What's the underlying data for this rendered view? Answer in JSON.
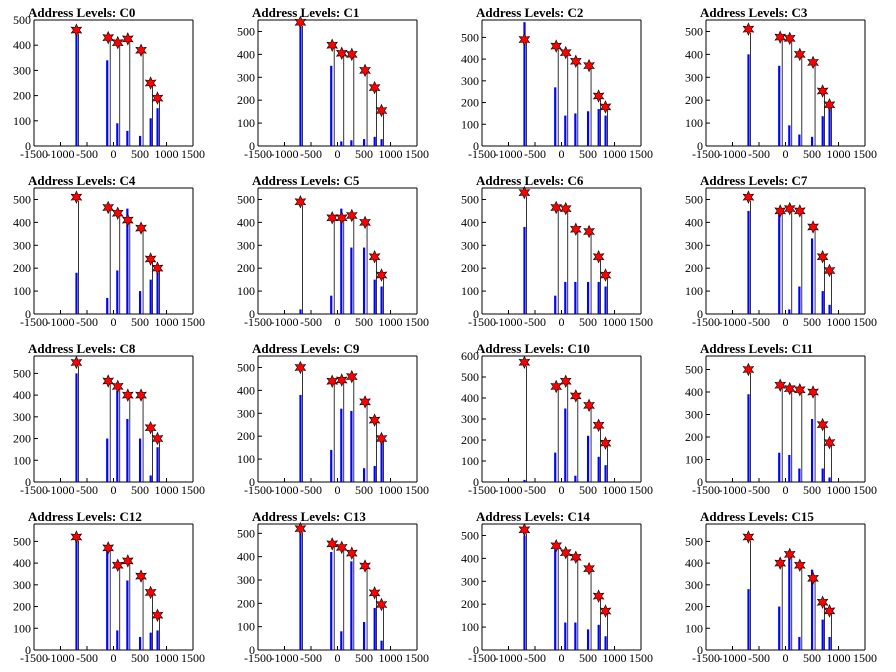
{
  "chart_data": [
    {
      "type": "bar",
      "title": "Address Levels: C0",
      "xlim": [
        -1500,
        1500
      ],
      "ylim": [
        0,
        500
      ],
      "xticks": [
        "-1500",
        "-1000",
        "-500",
        "0",
        "500",
        "1000",
        "1500"
      ],
      "yticks": [
        "0",
        "100",
        "200",
        "300",
        "400",
        "500"
      ],
      "stars": {
        "x": [
          -700,
          -100,
          80,
          270,
          520,
          700,
          830
        ],
        "y": [
          460,
          430,
          410,
          425,
          380,
          250,
          190
        ]
      },
      "bars": [
        {
          "x": -700,
          "y": 450
        },
        {
          "x": -120,
          "y": 340
        },
        {
          "x": 70,
          "y": 90
        },
        {
          "x": 260,
          "y": 60
        },
        {
          "x": 500,
          "y": 40
        },
        {
          "x": 700,
          "y": 110
        },
        {
          "x": 830,
          "y": 150
        }
      ]
    },
    {
      "type": "bar",
      "title": "Address Levels: C1",
      "xlim": [
        -1500,
        1500
      ],
      "ylim": [
        0,
        550
      ],
      "xticks": [
        "-1500",
        "-1000",
        "-500",
        "0",
        "500",
        "1000",
        "1500"
      ],
      "yticks": [
        "0",
        "100",
        "200",
        "300",
        "400",
        "500"
      ],
      "stars": {
        "x": [
          -700,
          -100,
          80,
          270,
          520,
          700,
          830
        ],
        "y": [
          540,
          440,
          405,
          400,
          330,
          255,
          155
        ]
      },
      "bars": [
        {
          "x": -700,
          "y": 520
        },
        {
          "x": -120,
          "y": 350
        },
        {
          "x": 70,
          "y": 20
        },
        {
          "x": 260,
          "y": 25
        },
        {
          "x": 500,
          "y": 30
        },
        {
          "x": 700,
          "y": 40
        },
        {
          "x": 830,
          "y": 30
        }
      ]
    },
    {
      "type": "bar",
      "title": "Address Levels: C2",
      "xlim": [
        -1500,
        1500
      ],
      "ylim": [
        0,
        580
      ],
      "xticks": [
        "-1500",
        "-1000",
        "-500",
        "0",
        "500",
        "1000",
        "1500"
      ],
      "yticks": [
        "0",
        "100",
        "200",
        "300",
        "400",
        "500"
      ],
      "stars": {
        "x": [
          -700,
          -100,
          80,
          270,
          520,
          700,
          830
        ],
        "y": [
          490,
          460,
          430,
          390,
          370,
          230,
          180
        ]
      },
      "bars": [
        {
          "x": -700,
          "y": 570
        },
        {
          "x": -120,
          "y": 270
        },
        {
          "x": 70,
          "y": 140
        },
        {
          "x": 260,
          "y": 150
        },
        {
          "x": 500,
          "y": 160
        },
        {
          "x": 700,
          "y": 170
        },
        {
          "x": 830,
          "y": 140
        }
      ]
    },
    {
      "type": "bar",
      "title": "Address Levels: C3",
      "xlim": [
        -1500,
        1500
      ],
      "ylim": [
        0,
        550
      ],
      "xticks": [
        "-1500",
        "-1000",
        "-500",
        "0",
        "500",
        "1000",
        "1500"
      ],
      "yticks": [
        "0",
        "100",
        "200",
        "300",
        "400",
        "500"
      ],
      "stars": {
        "x": [
          -700,
          -100,
          80,
          270,
          520,
          700,
          830
        ],
        "y": [
          510,
          475,
          470,
          400,
          365,
          240,
          180
        ]
      },
      "bars": [
        {
          "x": -700,
          "y": 400
        },
        {
          "x": -120,
          "y": 350
        },
        {
          "x": 70,
          "y": 90
        },
        {
          "x": 260,
          "y": 50
        },
        {
          "x": 500,
          "y": 40
        },
        {
          "x": 700,
          "y": 130
        },
        {
          "x": 830,
          "y": 160
        }
      ]
    },
    {
      "type": "bar",
      "title": "Address Levels: C4",
      "xlim": [
        -1500,
        1500
      ],
      "ylim": [
        0,
        550
      ],
      "xticks": [
        "-1500",
        "-1000",
        "-500",
        "0",
        "500",
        "1000",
        "1500"
      ],
      "yticks": [
        "0",
        "100",
        "200",
        "300",
        "400",
        "500"
      ],
      "stars": {
        "x": [
          -700,
          -100,
          80,
          270,
          520,
          700,
          830
        ],
        "y": [
          510,
          465,
          440,
          410,
          375,
          240,
          200
        ]
      },
      "bars": [
        {
          "x": -700,
          "y": 180
        },
        {
          "x": -120,
          "y": 70
        },
        {
          "x": 70,
          "y": 190
        },
        {
          "x": 260,
          "y": 460
        },
        {
          "x": 500,
          "y": 100
        },
        {
          "x": 700,
          "y": 150
        },
        {
          "x": 830,
          "y": 180
        }
      ]
    },
    {
      "type": "bar",
      "title": "Address Levels: C5",
      "xlim": [
        -1500,
        1500
      ],
      "ylim": [
        0,
        550
      ],
      "xticks": [
        "-1500",
        "-1000",
        "-500",
        "0",
        "500",
        "1000",
        "1500"
      ],
      "yticks": [
        "0",
        "100",
        "200",
        "300",
        "400",
        "500"
      ],
      "stars": {
        "x": [
          -700,
          -100,
          80,
          270,
          520,
          700,
          830
        ],
        "y": [
          490,
          420,
          420,
          430,
          400,
          250,
          170
        ]
      },
      "bars": [
        {
          "x": -700,
          "y": 20
        },
        {
          "x": -120,
          "y": 80
        },
        {
          "x": 70,
          "y": 460
        },
        {
          "x": 260,
          "y": 290
        },
        {
          "x": 500,
          "y": 290
        },
        {
          "x": 700,
          "y": 150
        },
        {
          "x": 830,
          "y": 120
        }
      ]
    },
    {
      "type": "bar",
      "title": "Address Levels: C6",
      "xlim": [
        -1500,
        1500
      ],
      "ylim": [
        0,
        550
      ],
      "xticks": [
        "-1500",
        "-1000",
        "-500",
        "0",
        "500",
        "1000",
        "1500"
      ],
      "yticks": [
        "0",
        "100",
        "200",
        "300",
        "400",
        "500"
      ],
      "stars": {
        "x": [
          -700,
          -100,
          80,
          270,
          520,
          700,
          830
        ],
        "y": [
          530,
          465,
          460,
          370,
          360,
          250,
          170
        ]
      },
      "bars": [
        {
          "x": -700,
          "y": 380
        },
        {
          "x": -120,
          "y": 80
        },
        {
          "x": 70,
          "y": 140
        },
        {
          "x": 260,
          "y": 140
        },
        {
          "x": 500,
          "y": 140
        },
        {
          "x": 700,
          "y": 140
        },
        {
          "x": 830,
          "y": 120
        }
      ]
    },
    {
      "type": "bar",
      "title": "Address Levels: C7",
      "xlim": [
        -1500,
        1500
      ],
      "ylim": [
        0,
        550
      ],
      "xticks": [
        "-1500",
        "-1000",
        "-500",
        "0",
        "500",
        "1000",
        "1500"
      ],
      "yticks": [
        "0",
        "100",
        "200",
        "300",
        "400",
        "500"
      ],
      "stars": {
        "x": [
          -700,
          -100,
          80,
          270,
          520,
          700,
          830
        ],
        "y": [
          510,
          450,
          460,
          450,
          380,
          250,
          190
        ]
      },
      "bars": [
        {
          "x": -700,
          "y": 450
        },
        {
          "x": -120,
          "y": 450
        },
        {
          "x": 70,
          "y": 20
        },
        {
          "x": 260,
          "y": 120
        },
        {
          "x": 500,
          "y": 330
        },
        {
          "x": 700,
          "y": 100
        },
        {
          "x": 830,
          "y": 40
        }
      ]
    },
    {
      "type": "bar",
      "title": "Address Levels: C8",
      "xlim": [
        -1500,
        1500
      ],
      "ylim": [
        0,
        580
      ],
      "xticks": [
        "-1500",
        "-1000",
        "-500",
        "0",
        "500",
        "1000",
        "1500"
      ],
      "yticks": [
        "0",
        "100",
        "200",
        "300",
        "400",
        "500"
      ],
      "stars": {
        "x": [
          -700,
          -100,
          80,
          270,
          520,
          700,
          830
        ],
        "y": [
          550,
          465,
          440,
          400,
          400,
          250,
          200
        ]
      },
      "bars": [
        {
          "x": -700,
          "y": 500
        },
        {
          "x": -120,
          "y": 200
        },
        {
          "x": 70,
          "y": 420
        },
        {
          "x": 260,
          "y": 290
        },
        {
          "x": 500,
          "y": 200
        },
        {
          "x": 700,
          "y": 30
        },
        {
          "x": 830,
          "y": 160
        }
      ]
    },
    {
      "type": "bar",
      "title": "Address Levels: C9",
      "xlim": [
        -1500,
        1500
      ],
      "ylim": [
        0,
        550
      ],
      "xticks": [
        "-1500",
        "-1000",
        "-500",
        "0",
        "500",
        "1000",
        "1500"
      ],
      "yticks": [
        "0",
        "100",
        "200",
        "300",
        "400",
        "500"
      ],
      "stars": {
        "x": [
          -700,
          -100,
          80,
          270,
          520,
          700,
          830
        ],
        "y": [
          500,
          440,
          445,
          460,
          350,
          270,
          190
        ]
      },
      "bars": [
        {
          "x": -700,
          "y": 380
        },
        {
          "x": -120,
          "y": 140
        },
        {
          "x": 70,
          "y": 320
        },
        {
          "x": 260,
          "y": 310
        },
        {
          "x": 500,
          "y": 60
        },
        {
          "x": 700,
          "y": 70
        },
        {
          "x": 830,
          "y": 180
        }
      ]
    },
    {
      "type": "bar",
      "title": "Address Levels: C10",
      "xlim": [
        -1500,
        1500
      ],
      "ylim": [
        0,
        600
      ],
      "xticks": [
        "-1500",
        "-1000",
        "-500",
        "0",
        "500",
        "1000",
        "1500"
      ],
      "yticks": [
        "0",
        "100",
        "200",
        "300",
        "400",
        "500",
        "600"
      ],
      "stars": {
        "x": [
          -700,
          -100,
          80,
          270,
          520,
          700,
          830
        ],
        "y": [
          570,
          455,
          480,
          410,
          365,
          270,
          185
        ]
      },
      "bars": [
        {
          "x": -700,
          "y": 10
        },
        {
          "x": -120,
          "y": 140
        },
        {
          "x": 70,
          "y": 350
        },
        {
          "x": 260,
          "y": 30
        },
        {
          "x": 500,
          "y": 220
        },
        {
          "x": 700,
          "y": 120
        },
        {
          "x": 830,
          "y": 80
        }
      ]
    },
    {
      "type": "bar",
      "title": "Address Levels: C11",
      "xlim": [
        -1500,
        1500
      ],
      "ylim": [
        0,
        560
      ],
      "xticks": [
        "-1500",
        "-1000",
        "-500",
        "0",
        "500",
        "1000",
        "1500"
      ],
      "yticks": [
        "0",
        "100",
        "200",
        "300",
        "400",
        "500"
      ],
      "stars": {
        "x": [
          -700,
          -100,
          80,
          270,
          520,
          700,
          830
        ],
        "y": [
          500,
          430,
          415,
          410,
          400,
          255,
          175
        ]
      },
      "bars": [
        {
          "x": -700,
          "y": 390
        },
        {
          "x": -120,
          "y": 130
        },
        {
          "x": 70,
          "y": 120
        },
        {
          "x": 260,
          "y": 60
        },
        {
          "x": 500,
          "y": 280
        },
        {
          "x": 700,
          "y": 60
        },
        {
          "x": 830,
          "y": 20
        }
      ]
    },
    {
      "type": "bar",
      "title": "Address Levels: C12",
      "xlim": [
        -1500,
        1500
      ],
      "ylim": [
        0,
        580
      ],
      "xticks": [
        "-1500",
        "-1000",
        "-500",
        "0",
        "500",
        "1000",
        "1500"
      ],
      "yticks": [
        "0",
        "100",
        "200",
        "300",
        "400",
        "500"
      ],
      "stars": {
        "x": [
          -700,
          -100,
          80,
          270,
          520,
          700,
          830
        ],
        "y": [
          520,
          470,
          390,
          410,
          340,
          265,
          160
        ]
      },
      "bars": [
        {
          "x": -700,
          "y": 510
        },
        {
          "x": -120,
          "y": 460
        },
        {
          "x": 70,
          "y": 90
        },
        {
          "x": 260,
          "y": 320
        },
        {
          "x": 500,
          "y": 60
        },
        {
          "x": 700,
          "y": 80
        },
        {
          "x": 830,
          "y": 90
        }
      ]
    },
    {
      "type": "bar",
      "title": "Address Levels: C13",
      "xlim": [
        -1500,
        1500
      ],
      "ylim": [
        0,
        540
      ],
      "xticks": [
        "-1500",
        "-1000",
        "-500",
        "0",
        "500",
        "1000",
        "1500"
      ],
      "yticks": [
        "0",
        "100",
        "200",
        "300",
        "400",
        "500"
      ],
      "stars": {
        "x": [
          -700,
          -100,
          80,
          270,
          520,
          700,
          830
        ],
        "y": [
          520,
          455,
          440,
          415,
          360,
          245,
          195
        ]
      },
      "bars": [
        {
          "x": -700,
          "y": 500
        },
        {
          "x": -120,
          "y": 420
        },
        {
          "x": 70,
          "y": 80
        },
        {
          "x": 260,
          "y": 380
        },
        {
          "x": 500,
          "y": 120
        },
        {
          "x": 700,
          "y": 180
        },
        {
          "x": 830,
          "y": 40
        }
      ]
    },
    {
      "type": "bar",
      "title": "Address Levels: C14",
      "xlim": [
        -1500,
        1500
      ],
      "ylim": [
        0,
        550
      ],
      "xticks": [
        "-1500",
        "-1000",
        "-500",
        "0",
        "500",
        "1000",
        "1500"
      ],
      "yticks": [
        "0",
        "100",
        "200",
        "300",
        "400",
        "500"
      ],
      "stars": {
        "x": [
          -700,
          -100,
          80,
          270,
          520,
          700,
          830
        ],
        "y": [
          525,
          455,
          425,
          405,
          355,
          235,
          170
        ]
      },
      "bars": [
        {
          "x": -700,
          "y": 500
        },
        {
          "x": -120,
          "y": 440
        },
        {
          "x": 70,
          "y": 120
        },
        {
          "x": 260,
          "y": 120
        },
        {
          "x": 500,
          "y": 90
        },
        {
          "x": 700,
          "y": 110
        },
        {
          "x": 830,
          "y": 60
        }
      ]
    },
    {
      "type": "bar",
      "title": "Address Levels: C15",
      "xlim": [
        -1500,
        1500
      ],
      "ylim": [
        0,
        580
      ],
      "xticks": [
        "-1500",
        "-1000",
        "-500",
        "0",
        "500",
        "1000",
        "1500"
      ],
      "yticks": [
        "0",
        "100",
        "200",
        "300",
        "400",
        "500"
      ],
      "stars": {
        "x": [
          -700,
          -100,
          80,
          270,
          520,
          700,
          830
        ],
        "y": [
          520,
          400,
          440,
          390,
          330,
          220,
          180
        ]
      },
      "bars": [
        {
          "x": -700,
          "y": 280
        },
        {
          "x": -120,
          "y": 200
        },
        {
          "x": 70,
          "y": 440
        },
        {
          "x": 260,
          "y": 60
        },
        {
          "x": 500,
          "y": 370
        },
        {
          "x": 700,
          "y": 140
        },
        {
          "x": 830,
          "y": 60
        }
      ]
    }
  ],
  "colors": {
    "bar": "#0000ff",
    "star": "#ff0000",
    "axis": "#000000",
    "text": "#000000"
  }
}
